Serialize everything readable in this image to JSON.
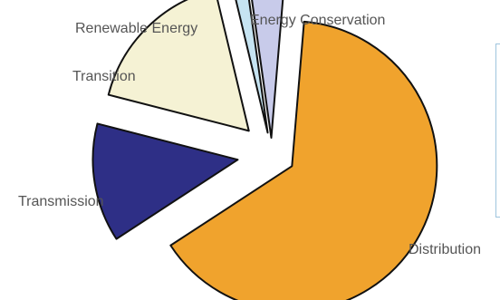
{
  "chart_data": {
    "type": "pie",
    "exploded": true,
    "categories": [
      "Energy Conservation",
      "Distribution",
      "Transmission",
      "Transition",
      "Renewable Energy"
    ],
    "values": [
      3.5,
      63.5,
      13,
      17,
      1.5
    ],
    "colors": [
      "#c8cbea",
      "#f0a32d",
      "#2e2f86",
      "#f5f2d4",
      "#c6e4f2"
    ],
    "labels": {
      "energy_conservation": "Energy Conservation",
      "distribution": "Distribution",
      "transmission": "Transmission",
      "transition": "Transition",
      "renewable_energy": "Renewable Energy"
    },
    "title": "",
    "legend": "right (cropped)"
  }
}
